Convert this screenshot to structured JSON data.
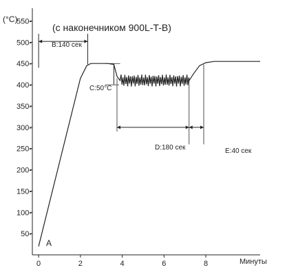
{
  "chart_data": {
    "type": "line",
    "title": "(с наконечником 900L-T-B)",
    "ylabel": "(°C)",
    "xlabel": "Минуты",
    "xlim": [
      -0.3,
      10.6
    ],
    "ylim": [
      0,
      580
    ],
    "x_ticks": [
      0,
      2,
      4,
      6,
      8
    ],
    "x_tick_labels": [
      "0",
      "2",
      "4",
      "6",
      "8"
    ],
    "y_ticks": [
      50,
      100,
      150,
      200,
      250,
      300,
      350,
      400,
      450,
      500,
      550
    ],
    "y_tick_labels": [
      "50-",
      "100-",
      "150-",
      "200-",
      "250-",
      "300-",
      "350-",
      "400-",
      "450-",
      "500-",
      "550-"
    ],
    "grid": false,
    "series": [
      {
        "color": "#222222",
        "points": [
          [
            0,
            20
          ],
          [
            2.0,
            415
          ],
          [
            2.3,
            445
          ],
          [
            2.5,
            450
          ],
          [
            3.3,
            450
          ],
          [
            3.6,
            448
          ],
          [
            3.75,
            420
          ],
          [
            3.9,
            410
          ],
          [
            7.2,
            410
          ],
          [
            7.4,
            425
          ],
          [
            7.7,
            445
          ],
          [
            8.0,
            452
          ],
          [
            8.4,
            455
          ],
          [
            10.6,
            455
          ]
        ],
        "oscillation": {
          "x_start": 3.9,
          "x_end": 7.2,
          "center": 410,
          "amplitude": 14,
          "period": 0.09
        }
      }
    ],
    "annotations": {
      "a": "A",
      "b": "B:140 сек",
      "c": "C:50°C",
      "d": "D:180 сек",
      "e": "E:40 сек"
    }
  },
  "colors": {
    "line": "#222222",
    "background": "#ffffff"
  }
}
